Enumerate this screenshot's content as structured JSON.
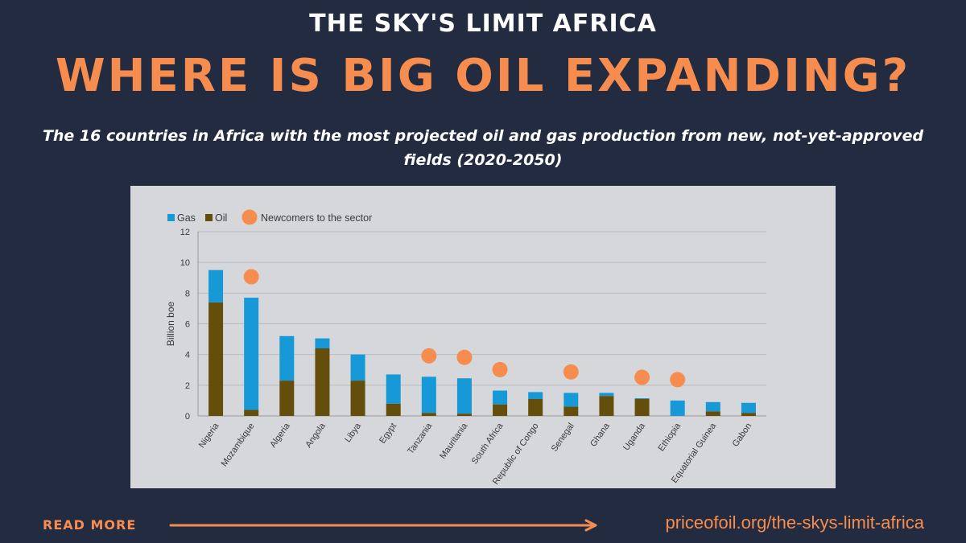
{
  "header": {
    "kicker": "THE SKY'S LIMIT AFRICA",
    "headline": "WHERE IS BIG OIL EXPANDING?",
    "subtitle": "The 16 countries in Africa with the most projected oil and gas production from new, not-yet-approved fields (2020-2050)"
  },
  "footer": {
    "read_more": "READ MORE",
    "url": "priceofoil.org/the-skys-limit-africa"
  },
  "colors": {
    "background": "#222b40",
    "accent": "#f68c4e",
    "gas": "#1699d6",
    "oil": "#634e0b",
    "newcomer": "#f68c4e"
  },
  "chart_data": {
    "type": "bar",
    "stacked": true,
    "ylabel": "Billion boe",
    "xlabel": "",
    "ylim": [
      0,
      12
    ],
    "yticks": [
      0,
      2,
      4,
      6,
      8,
      10,
      12
    ],
    "grid": true,
    "legend": {
      "position": "top-left",
      "items": [
        {
          "label": "Gas",
          "color": "#1699d6"
        },
        {
          "label": "Oil",
          "color": "#634e0b"
        },
        {
          "label": "Newcomers to the sector",
          "color": "#f68c4e",
          "marker": "circle"
        }
      ]
    },
    "categories": [
      "Nigeria",
      "Mozambique",
      "Algeria",
      "Angola",
      "Libya",
      "Egypt",
      "Tanzania",
      "Mauritania",
      "South Africa",
      "Republic of Congo",
      "Senegal",
      "Ghana",
      "Uganda",
      "Ethiopia",
      "Equatorial Guinea",
      "Gabon"
    ],
    "series": [
      {
        "name": "Oil",
        "color": "#634e0b",
        "values": [
          7.4,
          0.4,
          2.3,
          4.4,
          2.3,
          0.8,
          0.2,
          0.15,
          0.75,
          1.1,
          0.6,
          1.3,
          1.1,
          0.0,
          0.3,
          0.2
        ]
      },
      {
        "name": "Gas",
        "color": "#1699d6",
        "values": [
          2.1,
          7.3,
          2.9,
          0.65,
          1.7,
          1.9,
          2.35,
          2.3,
          0.9,
          0.45,
          0.9,
          0.2,
          0.05,
          1.0,
          0.6,
          0.65
        ]
      }
    ],
    "newcomers": [
      "Mozambique",
      "Tanzania",
      "Mauritania",
      "South Africa",
      "Senegal",
      "Uganda",
      "Ethiopia"
    ]
  }
}
